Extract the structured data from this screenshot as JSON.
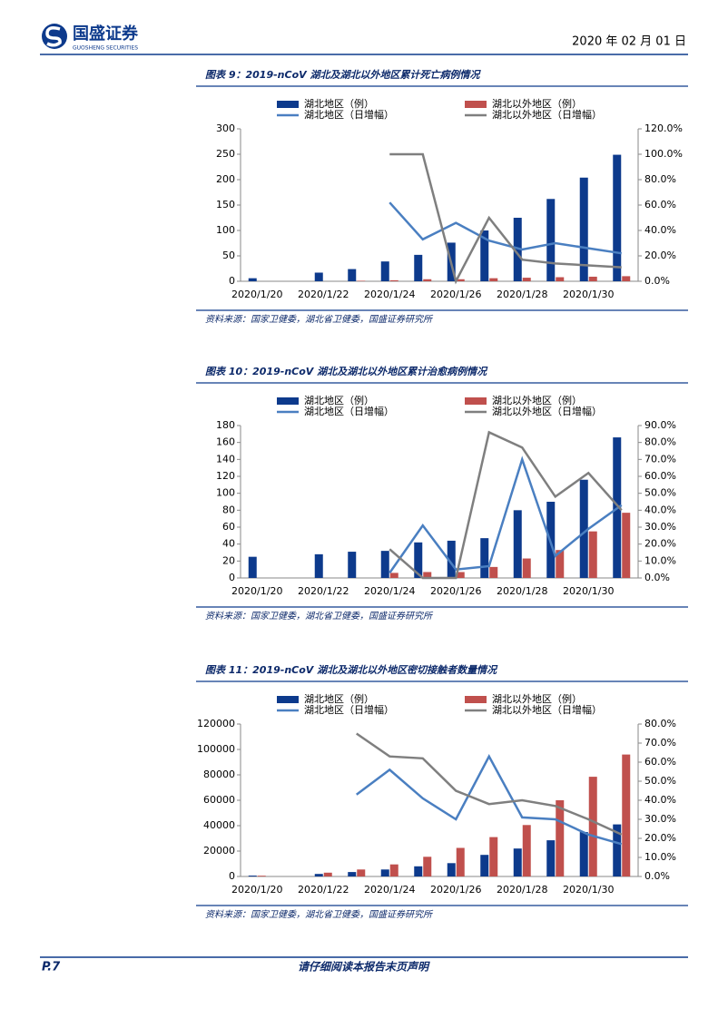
{
  "header": {
    "brand": "国盛证券",
    "brand_en": "GUOSHENG SECURITIES",
    "date": "2020 年 02 月 01 日"
  },
  "chart_data": [
    {
      "type": "combo",
      "title": "图表 9：2019-nCoV 湖北及湖北以外地区累计死亡病例情况",
      "categories": [
        "2020/1/20",
        null,
        "2020/1/22",
        null,
        "2020/1/24",
        null,
        "2020/1/26",
        null,
        "2020/1/28",
        null,
        "2020/1/30",
        null
      ],
      "series": [
        {
          "name": "湖北地区（例）",
          "type": "bar",
          "color": "#0d3a8c",
          "values": [
            6,
            null,
            17,
            24,
            39,
            52,
            76,
            100,
            125,
            162,
            204,
            249
          ]
        },
        {
          "name": "湖北以外地区（例）",
          "type": "bar",
          "color": "#c0504d",
          "values": [
            null,
            null,
            null,
            1,
            2,
            4,
            4,
            6,
            7,
            8,
            9,
            10
          ]
        },
        {
          "name": "湖北地区（日增幅）",
          "type": "line",
          "axis": "y2",
          "color": "#4a7fc1",
          "values": [
            null,
            null,
            null,
            null,
            62,
            33,
            46,
            32,
            25,
            30,
            26,
            22
          ]
        },
        {
          "name": "湖北以外地区（日增幅）",
          "type": "line",
          "axis": "y2",
          "color": "#7f7f7f",
          "values": [
            null,
            null,
            null,
            null,
            100,
            100,
            0,
            50,
            17,
            14,
            12.5,
            11
          ]
        }
      ],
      "ylim": [
        0,
        300
      ],
      "yticks": [
        0,
        50,
        100,
        150,
        200,
        250,
        300
      ],
      "y2lim": [
        0,
        120
      ],
      "y2ticks": [
        {
          "value": 0,
          "label": "0.0%"
        },
        {
          "value": 20,
          "label": "20.0%"
        },
        {
          "value": 40,
          "label": "40.0%"
        },
        {
          "value": 60,
          "label": "60.0%"
        },
        {
          "value": 80,
          "label": "80.0%"
        },
        {
          "value": 100,
          "label": "100.0%"
        },
        {
          "value": 120,
          "label": "120.0%"
        }
      ],
      "source": "资料来源：国家卫健委，湖北省卫健委，国盛证券研究所"
    },
    {
      "type": "combo",
      "title": "图表 10：2019-nCoV 湖北及湖北以外地区累计治愈病例情况",
      "categories": [
        "2020/1/20",
        null,
        "2020/1/22",
        null,
        "2020/1/24",
        null,
        "2020/1/26",
        null,
        "2020/1/28",
        null,
        "2020/1/30",
        null
      ],
      "series": [
        {
          "name": "湖北地区（例）",
          "type": "bar",
          "color": "#0d3a8c",
          "values": [
            25,
            null,
            28,
            31,
            32,
            42,
            44,
            47,
            80,
            90,
            116,
            166
          ]
        },
        {
          "name": "湖北以外地区（例）",
          "type": "bar",
          "color": "#c0504d",
          "values": [
            null,
            null,
            null,
            null,
            6,
            7,
            7,
            13,
            23,
            33,
            55,
            77
          ]
        },
        {
          "name": "湖北地区（日增幅）",
          "type": "line",
          "axis": "y2",
          "color": "#4a7fc1",
          "values": [
            null,
            null,
            null,
            null,
            3,
            31,
            5,
            7,
            70,
            13,
            29,
            43
          ]
        },
        {
          "name": "湖北以外地区（日增幅）",
          "type": "line",
          "axis": "y2",
          "color": "#7f7f7f",
          "values": [
            null,
            null,
            null,
            null,
            17,
            0,
            0,
            86,
            77,
            48,
            62,
            40
          ]
        }
      ],
      "ylim": [
        0,
        180
      ],
      "yticks": [
        0,
        20,
        40,
        60,
        80,
        100,
        120,
        140,
        160,
        180
      ],
      "y2lim": [
        0,
        90
      ],
      "y2ticks": [
        {
          "value": 0,
          "label": "0.0%"
        },
        {
          "value": 10,
          "label": "10.0%"
        },
        {
          "value": 20,
          "label": "20.0%"
        },
        {
          "value": 30,
          "label": "30.0%"
        },
        {
          "value": 40,
          "label": "40.0%"
        },
        {
          "value": 50,
          "label": "50.0%"
        },
        {
          "value": 60,
          "label": "60.0%"
        },
        {
          "value": 70,
          "label": "70.0%"
        },
        {
          "value": 80,
          "label": "80.0%"
        },
        {
          "value": 90,
          "label": "90.0%"
        }
      ],
      "source": "资料来源：国家卫健委，湖北省卫健委，国盛证券研究所"
    },
    {
      "type": "combo",
      "title": "图表 11：2019-nCoV 湖北及湖北以外地区密切接触者数量情况",
      "categories": [
        "2020/1/20",
        null,
        "2020/1/22",
        null,
        "2020/1/24",
        null,
        "2020/1/26",
        null,
        "2020/1/28",
        null,
        "2020/1/30",
        null
      ],
      "series": [
        {
          "name": "湖北地区（例）",
          "type": "bar",
          "color": "#0d3a8c",
          "values": [
            700,
            null,
            2000,
            3500,
            5500,
            8000,
            10500,
            17000,
            22000,
            28500,
            35000,
            41000
          ]
        },
        {
          "name": "湖北以外地区（例）",
          "type": "bar",
          "color": "#c0504d",
          "values": [
            600,
            null,
            3000,
            5500,
            9500,
            15500,
            22500,
            31000,
            40500,
            60000,
            78500,
            96000
          ]
        },
        {
          "name": "湖北地区（日增幅）",
          "type": "line",
          "axis": "y2",
          "color": "#4a7fc1",
          "values": [
            null,
            null,
            null,
            43,
            56,
            41,
            30,
            63,
            31,
            30,
            22,
            17
          ]
        },
        {
          "name": "湖北以外地区（日增幅）",
          "type": "line",
          "axis": "y2",
          "color": "#7f7f7f",
          "values": [
            null,
            null,
            null,
            75,
            63,
            62,
            45,
            38,
            40,
            37,
            30,
            22
          ]
        }
      ],
      "ylim": [
        0,
        120000
      ],
      "yticks": [
        0,
        20000,
        40000,
        60000,
        80000,
        100000,
        120000
      ],
      "y2lim": [
        0,
        80
      ],
      "y2ticks": [
        {
          "value": 0,
          "label": "0.0%"
        },
        {
          "value": 10,
          "label": "10.0%"
        },
        {
          "value": 20,
          "label": "20.0%"
        },
        {
          "value": 30,
          "label": "30.0%"
        },
        {
          "value": 40,
          "label": "40.0%"
        },
        {
          "value": 50,
          "label": "50.0%"
        },
        {
          "value": 60,
          "label": "60.0%"
        },
        {
          "value": 70,
          "label": "70.0%"
        },
        {
          "value": 80,
          "label": "80.0%"
        }
      ],
      "source": "资料来源：国家卫健委，湖北省卫健委，国盛证券研究所"
    }
  ],
  "footer": {
    "page": "P.7",
    "disclaimer": "请仔细阅读本报告末页声明"
  }
}
